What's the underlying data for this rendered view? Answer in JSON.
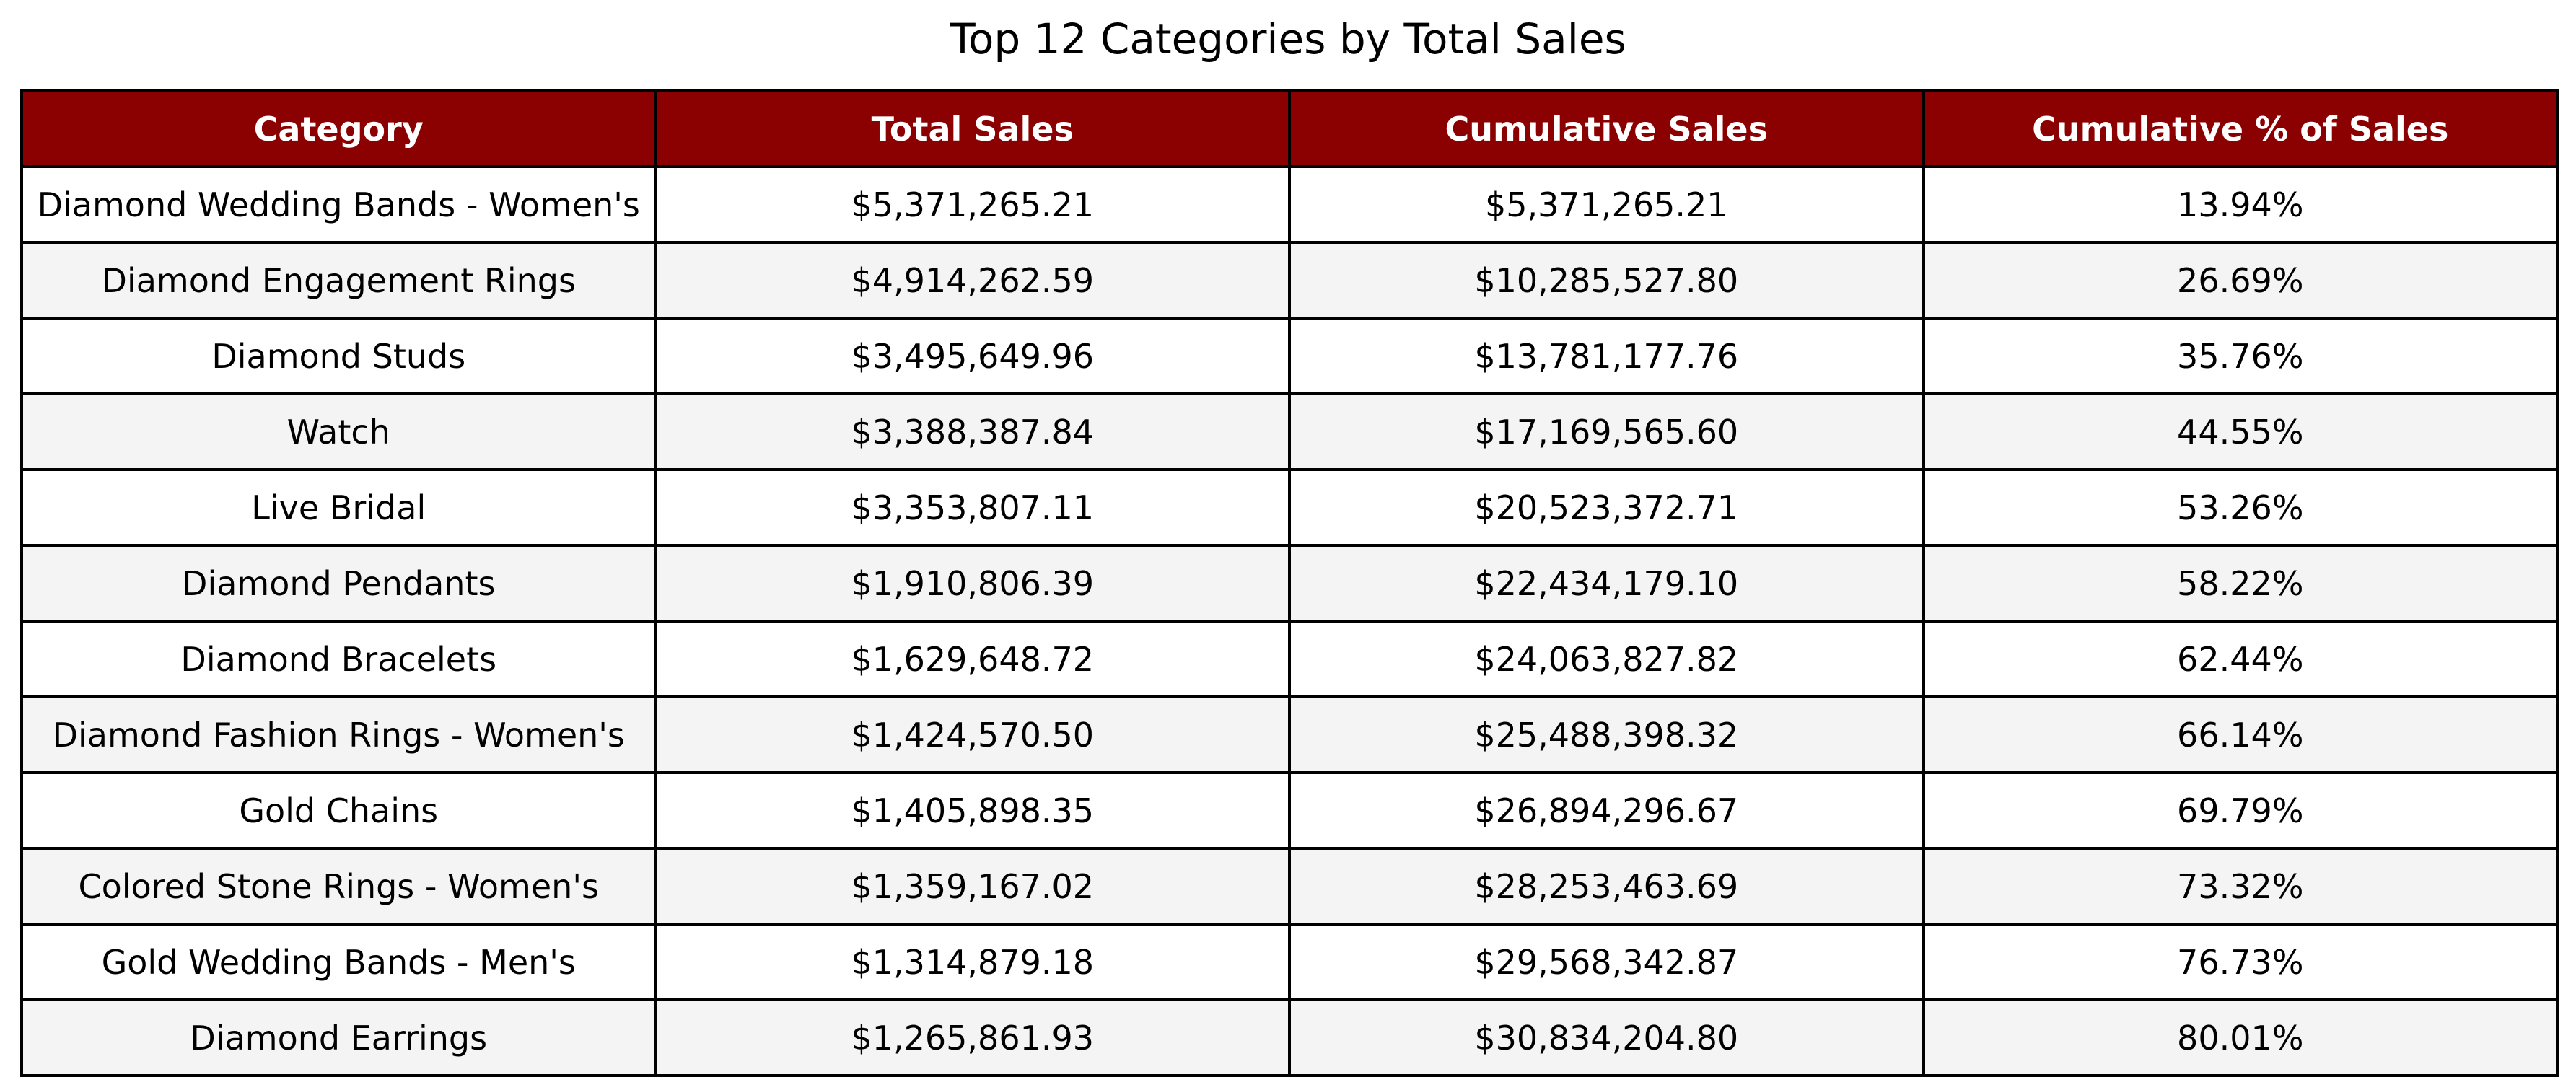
{
  "colors": {
    "header_bg": "#8b0000",
    "header_text": "#ffffff",
    "row_odd_bg": "#ffffff",
    "row_even_bg": "#f4f4f4",
    "grid": "#000000"
  },
  "chart_data": {
    "type": "table",
    "title": "Top 12 Categories by Total Sales",
    "columns": [
      "Category",
      "Total Sales",
      "Cumulative Sales",
      "Cumulative % of Sales"
    ],
    "rows": [
      [
        "Diamond Wedding Bands  -  Women's",
        "$5,371,265.21",
        "$5,371,265.21",
        "13.94%"
      ],
      [
        "Diamond Engagement Rings",
        "$4,914,262.59",
        "$10,285,527.80",
        "26.69%"
      ],
      [
        "Diamond Studs",
        "$3,495,649.96",
        "$13,781,177.76",
        "35.76%"
      ],
      [
        "Watch",
        "$3,388,387.84",
        "$17,169,565.60",
        "44.55%"
      ],
      [
        "Live Bridal",
        "$3,353,807.11",
        "$20,523,372.71",
        "53.26%"
      ],
      [
        "Diamond Pendants",
        "$1,910,806.39",
        "$22,434,179.10",
        "58.22%"
      ],
      [
        "Diamond Bracelets",
        "$1,629,648.72",
        "$24,063,827.82",
        "62.44%"
      ],
      [
        "Diamond Fashion Rings  -  Women's",
        "$1,424,570.50",
        "$25,488,398.32",
        "66.14%"
      ],
      [
        "Gold Chains",
        "$1,405,898.35",
        "$26,894,296.67",
        "69.79%"
      ],
      [
        "Colored Stone Rings  -  Women's",
        "$1,359,167.02",
        "$28,253,463.69",
        "73.32%"
      ],
      [
        "Gold Wedding Bands  -  Men's",
        "$1,314,879.18",
        "$29,568,342.87",
        "76.73%"
      ],
      [
        "Diamond Earrings",
        "$1,265,861.93",
        "$30,834,204.80",
        "80.01%"
      ]
    ]
  }
}
